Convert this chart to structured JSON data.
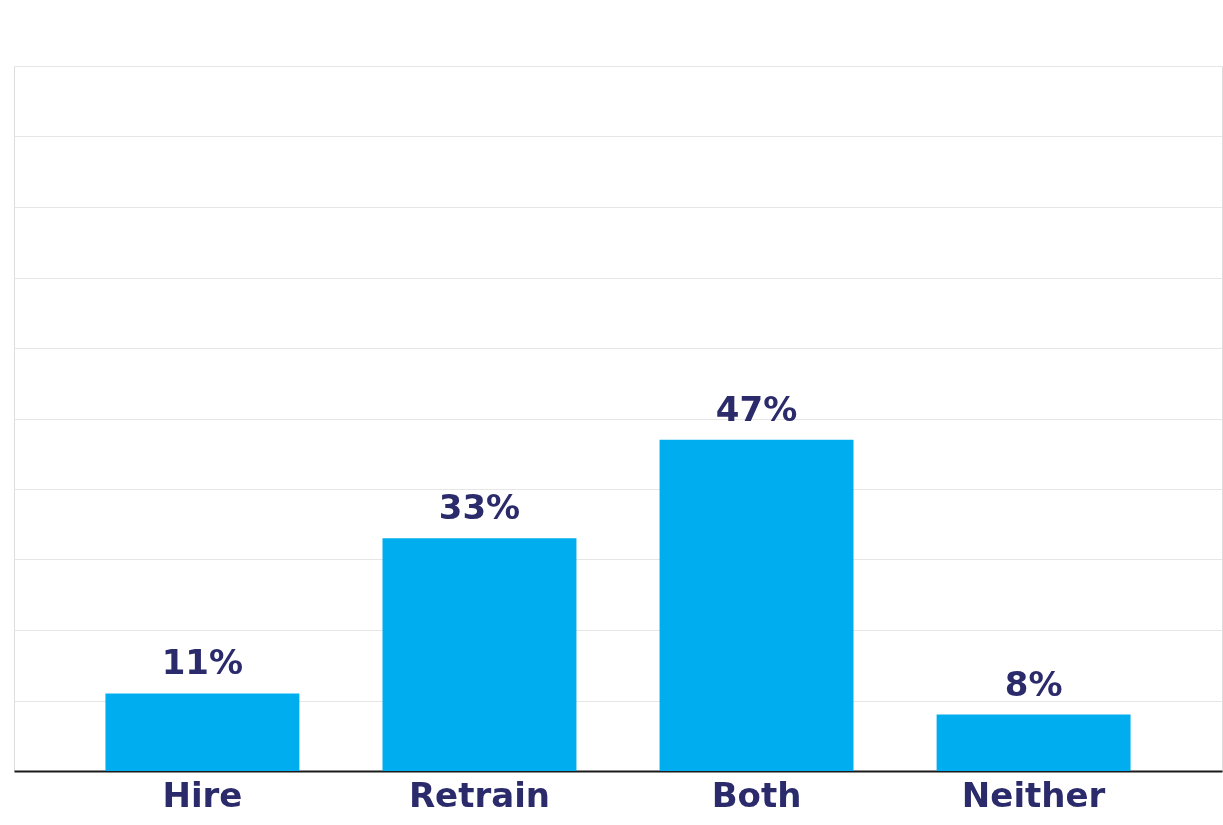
{
  "chart_data": {
    "type": "bar",
    "categories": [
      "Hire",
      "Retrain",
      "Both",
      "Neither"
    ],
    "values": [
      11,
      33,
      47,
      8
    ],
    "value_labels": [
      "11%",
      "33%",
      "47%",
      "8%"
    ],
    "color": "#00aeef",
    "ylim": [
      0,
      100
    ],
    "yticks": [
      0,
      10,
      20,
      30,
      40,
      50,
      60,
      70,
      80,
      90,
      100
    ],
    "grid": "y",
    "tick_labels": "x"
  }
}
